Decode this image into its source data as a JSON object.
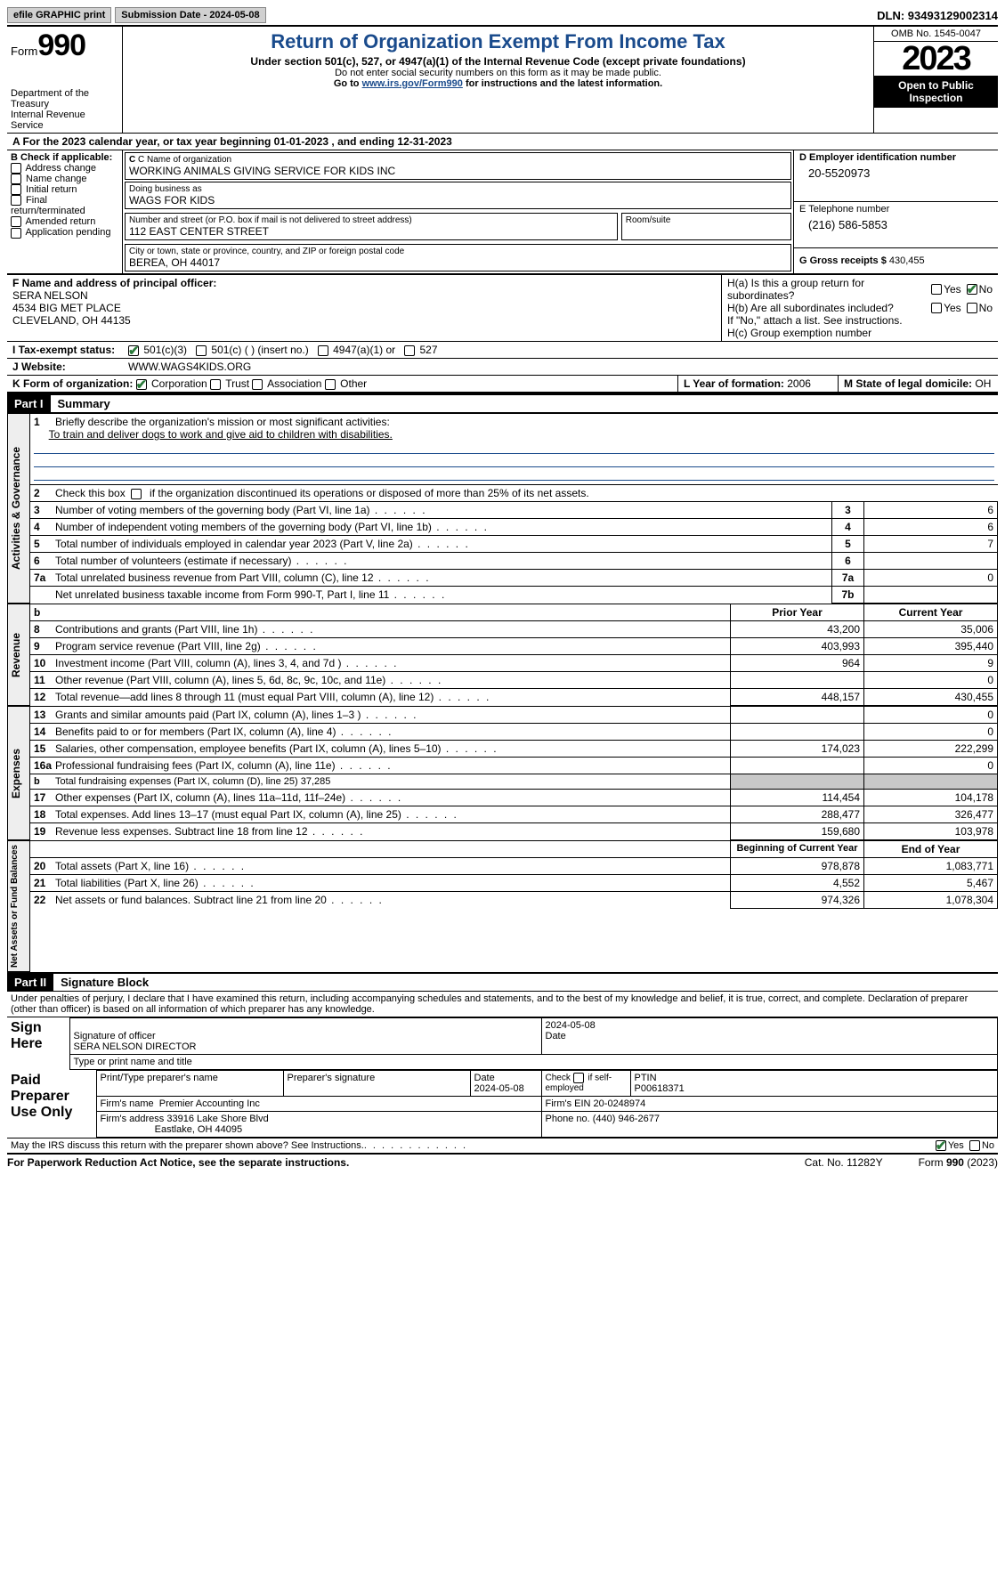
{
  "topbar": {
    "efile": "efile GRAPHIC print",
    "submission": "Submission Date - 2024-05-08",
    "dln": "DLN: 93493129002314"
  },
  "header": {
    "form_label": "Form",
    "form_number": "990",
    "dept": "Department of the Treasury",
    "irs": "Internal Revenue Service",
    "title": "Return of Organization Exempt From Income Tax",
    "subtitle": "Under section 501(c), 527, or 4947(a)(1) of the Internal Revenue Code (except private foundations)",
    "warn": "Do not enter social security numbers on this form as it may be made public.",
    "goto_pre": "Go to ",
    "goto_link": "www.irs.gov/Form990",
    "goto_post": " for instructions and the latest information.",
    "omb": "OMB No. 1545-0047",
    "year": "2023",
    "inspection": "Open to Public Inspection"
  },
  "rowA": {
    "pre": "A For the 2023 calendar year, or tax year beginning ",
    "begin": "01-01-2023",
    "mid": " , and ending ",
    "end": "12-31-2023"
  },
  "colB": {
    "title": "B Check if applicable:",
    "items": [
      "Address change",
      "Name change",
      "Initial return",
      "Final return/terminated",
      "Amended return",
      "Application pending"
    ]
  },
  "colC": {
    "name_label": "C Name of organization",
    "name": "WORKING ANIMALS GIVING SERVICE FOR KIDS INC",
    "dba_label": "Doing business as",
    "dba": "WAGS FOR KIDS",
    "street_label": "Number and street (or P.O. box if mail is not delivered to street address)",
    "room_label": "Room/suite",
    "street": "112 EAST CENTER STREET",
    "city_label": "City or town, state or province, country, and ZIP or foreign postal code",
    "city": "BEREA, OH  44017"
  },
  "colD": {
    "ein_label": "D Employer identification number",
    "ein": "20-5520973",
    "tel_label": "E Telephone number",
    "tel": "(216) 586-5853",
    "gross_label": "G Gross receipts $ ",
    "gross": "430,455"
  },
  "rowF": {
    "label": "F  Name and address of principal officer:",
    "name": "SERA NELSON",
    "addr1": "4534 BIG MET PLACE",
    "addr2": "CLEVELAND, OH  44135"
  },
  "rowH": {
    "a_label": "H(a)  Is this a group return for subordinates?",
    "b_label": "H(b)  Are all subordinates included?",
    "note": "If \"No,\" attach a list. See instructions.",
    "c_label": "H(c)  Group exemption number",
    "yes": "Yes",
    "no": "No"
  },
  "rowI": {
    "label": "I   Tax-exempt status:",
    "o1": "501(c)(3)",
    "o2": "501(c) (  ) (insert no.)",
    "o3": "4947(a)(1) or",
    "o4": "527"
  },
  "rowJ": {
    "label": "J   Website:",
    "value": "WWW.WAGS4KIDS.ORG"
  },
  "rowK": {
    "label": "K Form of organization:",
    "corp": "Corporation",
    "trust": "Trust",
    "assoc": "Association",
    "other": "Other"
  },
  "rowL": {
    "label": "L Year of formation: ",
    "value": "2006"
  },
  "rowM": {
    "label": "M State of legal domicile: ",
    "value": "OH"
  },
  "part1": {
    "tag": "Part I",
    "title": "Summary"
  },
  "summary": {
    "line1_label": "Briefly describe the organization's mission or most significant activities:",
    "line1_value": "To train and deliver dogs to work and give aid to children with disabilities.",
    "line2": "Check this box      if the organization discontinued its operations or disposed of more than 25% of its net assets.",
    "gov": [
      {
        "n": "3",
        "label": "Number of voting members of the governing body (Part VI, line 1a)",
        "col": "3",
        "val": "6"
      },
      {
        "n": "4",
        "label": "Number of independent voting members of the governing body (Part VI, line 1b)",
        "col": "4",
        "val": "6"
      },
      {
        "n": "5",
        "label": "Total number of individuals employed in calendar year 2023 (Part V, line 2a)",
        "col": "5",
        "val": "7"
      },
      {
        "n": "6",
        "label": "Total number of volunteers (estimate if necessary)",
        "col": "6",
        "val": ""
      },
      {
        "n": "7a",
        "label": "Total unrelated business revenue from Part VIII, column (C), line 12",
        "col": "7a",
        "val": "0"
      },
      {
        "n": "",
        "label": "Net unrelated business taxable income from Form 990-T, Part I, line 11",
        "col": "7b",
        "val": ""
      }
    ],
    "prior_header": "Prior Year",
    "current_header": "Current Year",
    "rev": [
      {
        "n": "8",
        "label": "Contributions and grants (Part VIII, line 1h)",
        "p": "43,200",
        "c": "35,006"
      },
      {
        "n": "9",
        "label": "Program service revenue (Part VIII, line 2g)",
        "p": "403,993",
        "c": "395,440"
      },
      {
        "n": "10",
        "label": "Investment income (Part VIII, column (A), lines 3, 4, and 7d )",
        "p": "964",
        "c": "9"
      },
      {
        "n": "11",
        "label": "Other revenue (Part VIII, column (A), lines 5, 6d, 8c, 9c, 10c, and 11e)",
        "p": "",
        "c": "0"
      },
      {
        "n": "12",
        "label": "Total revenue—add lines 8 through 11 (must equal Part VIII, column (A), line 12)",
        "p": "448,157",
        "c": "430,455"
      }
    ],
    "exp": [
      {
        "n": "13",
        "label": "Grants and similar amounts paid (Part IX, column (A), lines 1–3 )",
        "p": "",
        "c": "0"
      },
      {
        "n": "14",
        "label": "Benefits paid to or for members (Part IX, column (A), line 4)",
        "p": "",
        "c": "0"
      },
      {
        "n": "15",
        "label": "Salaries, other compensation, employee benefits (Part IX, column (A), lines 5–10)",
        "p": "174,023",
        "c": "222,299"
      },
      {
        "n": "16a",
        "label": "Professional fundraising fees (Part IX, column (A), line 11e)",
        "p": "",
        "c": "0"
      },
      {
        "n": "b",
        "label": "Total fundraising expenses (Part IX, column (D), line 25) 37,285",
        "shade": true
      },
      {
        "n": "17",
        "label": "Other expenses (Part IX, column (A), lines 11a–11d, 11f–24e)",
        "p": "114,454",
        "c": "104,178"
      },
      {
        "n": "18",
        "label": "Total expenses. Add lines 13–17 (must equal Part IX, column (A), line 25)",
        "p": "288,477",
        "c": "326,477"
      },
      {
        "n": "19",
        "label": "Revenue less expenses. Subtract line 18 from line 12",
        "p": "159,680",
        "c": "103,978"
      }
    ],
    "bcy": "Beginning of Current Year",
    "eoy": "End of Year",
    "net": [
      {
        "n": "20",
        "label": "Total assets (Part X, line 16)",
        "p": "978,878",
        "c": "1,083,771"
      },
      {
        "n": "21",
        "label": "Total liabilities (Part X, line 26)",
        "p": "4,552",
        "c": "5,467"
      },
      {
        "n": "22",
        "label": "Net assets or fund balances. Subtract line 21 from line 20",
        "p": "974,326",
        "c": "1,078,304"
      }
    ],
    "vtabs": {
      "gov": "Activities & Governance",
      "rev": "Revenue",
      "exp": "Expenses",
      "net": "Net Assets or Fund Balances"
    }
  },
  "part2": {
    "tag": "Part II",
    "title": "Signature Block"
  },
  "sig": {
    "declaration": "Under penalties of perjury, I declare that I have examined this return, including accompanying schedules and statements, and to the best of my knowledge and belief, it is true, correct, and complete. Declaration of preparer (other than officer) is based on all information of which preparer has any knowledge.",
    "sign_here": "Sign Here",
    "sig_officer": "Signature of officer",
    "officer": "SERA NELSON  DIRECTOR",
    "type_name": "Type or print name and title",
    "date_label": "Date",
    "date": "2024-05-08",
    "paid": "Paid Preparer Use Only",
    "prep_name_lbl": "Print/Type preparer's name",
    "prep_sig_lbl": "Preparer's signature",
    "prep_date_lbl": "Date",
    "prep_date": "2024-05-08",
    "self_emp": "Check       if self-employed",
    "ptin_lbl": "PTIN",
    "ptin": "P00618371",
    "firm_name_lbl": "Firm's name  ",
    "firm_name": "Premier Accounting Inc",
    "firm_ein_lbl": "Firm's EIN  ",
    "firm_ein": "20-0248974",
    "firm_addr_lbl": "Firm's address ",
    "firm_addr1": "33916 Lake Shore Blvd",
    "firm_addr2": "Eastlake, OH  44095",
    "phone_lbl": "Phone no. ",
    "phone": "(440) 946-2677",
    "discuss": "May the IRS discuss this return with the preparer shown above? See Instructions.",
    "yes": "Yes",
    "no": "No"
  },
  "footer": {
    "left": "For Paperwork Reduction Act Notice, see the separate instructions.",
    "mid": "Cat. No. 11282Y",
    "right_pre": "Form ",
    "right_form": "990",
    "right_post": " (2023)"
  }
}
